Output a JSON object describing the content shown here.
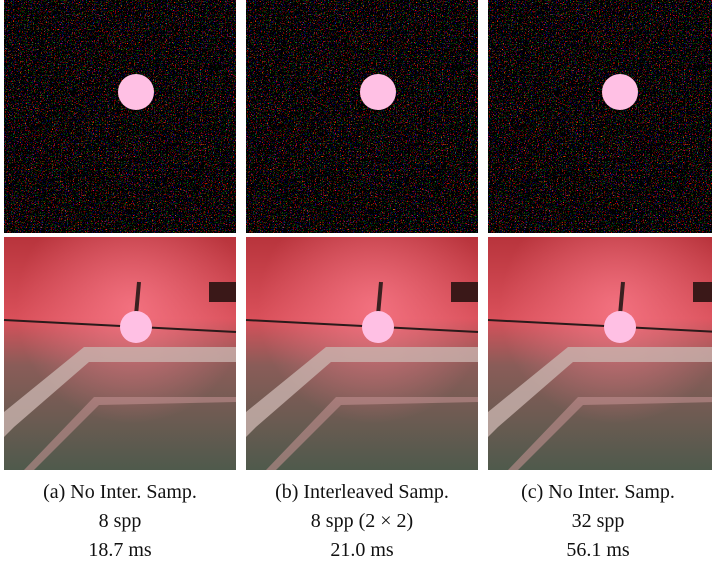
{
  "panels": [
    {
      "caption": "(a) No Inter. Samp.",
      "spp": "8 spp",
      "time": "18.7 ms"
    },
    {
      "caption": "(b) Interleaved Samp.",
      "spp": "8 spp (2 × 2)",
      "time": "21.0 ms"
    },
    {
      "caption": "(c) No Inter. Samp.",
      "spp": "32 spp",
      "time": "56.1 ms"
    }
  ]
}
